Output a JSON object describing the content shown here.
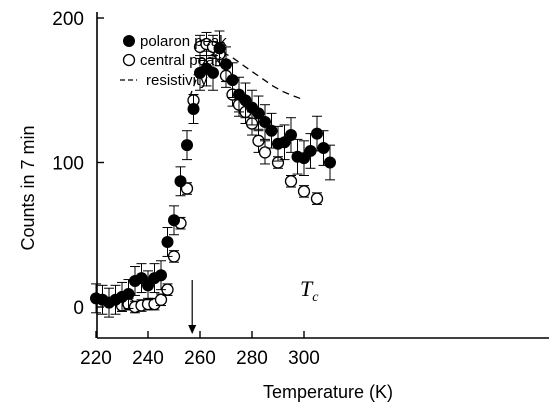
{
  "chart_data": {
    "type": "scatter",
    "xlabel": "Temperature (K)",
    "ylabel": "Counts in 7 min",
    "xlim": [
      219,
      310
    ],
    "ylim": [
      -15,
      205
    ],
    "xticks": [
      220,
      240,
      260,
      280,
      300
    ],
    "yticks": [
      0,
      100,
      200
    ],
    "grid": false,
    "legend_position": "top-left",
    "series": [
      {
        "name": "polaron peak",
        "marker": "filled-circle",
        "color": "#000000",
        "x": [
          220,
          222.5,
          225,
          227.5,
          230,
          232.5,
          235,
          237.5,
          240,
          242.5,
          245,
          247.5,
          250,
          252.5,
          255,
          257.5,
          260,
          262.5,
          265,
          267.5,
          270,
          272.5,
          275,
          277.5,
          280,
          282.5,
          285,
          287.5,
          290,
          292.5,
          295,
          297.5,
          300,
          302.5,
          305,
          307.5,
          310
        ],
        "y": [
          6,
          5,
          3,
          5,
          7,
          9,
          18,
          20,
          15,
          20,
          22,
          45,
          60,
          87,
          112,
          137,
          162,
          165,
          162,
          179,
          168,
          157,
          147,
          143,
          138,
          134,
          128,
          122,
          113,
          114,
          119,
          104,
          103,
          108,
          120,
          110,
          100
        ],
        "yerr": [
          10,
          10,
          10,
          10,
          10,
          10,
          10,
          10,
          10,
          10,
          10,
          10,
          10,
          10,
          10,
          10,
          12,
          12,
          12,
          12,
          12,
          12,
          12,
          12,
          12,
          12,
          12,
          12,
          12,
          12,
          12,
          12,
          12,
          12,
          12,
          12,
          12
        ]
      },
      {
        "name": "central peak",
        "marker": "open-circle",
        "color": "#000000",
        "x": [
          230,
          232.5,
          235,
          237.5,
          240,
          242.5,
          245,
          247.5,
          250,
          252.5,
          255,
          257.5,
          260,
          262.5,
          265,
          267.5,
          270,
          272.5,
          275,
          277.5,
          280,
          282.5,
          285,
          290,
          295,
          300,
          305
        ],
        "y": [
          1,
          2,
          0,
          1,
          2,
          2,
          5,
          12,
          35,
          58,
          82,
          143,
          180,
          182,
          180,
          175,
          160,
          147,
          140,
          135,
          127,
          115,
          107,
          100,
          87,
          80,
          75
        ],
        "yerr": [
          4,
          4,
          4,
          4,
          4,
          4,
          4,
          4,
          4,
          4,
          4,
          4,
          8,
          8,
          8,
          8,
          8,
          8,
          8,
          8,
          8,
          8,
          8,
          4,
          4,
          4,
          4
        ]
      },
      {
        "name": "resistivity",
        "line_style": "dashed",
        "color": "#000000",
        "x": [
          256,
          260,
          263,
          266,
          268,
          270,
          273,
          276,
          280,
          284,
          288,
          292,
          296,
          299
        ],
        "y": [
          145,
          165,
          173,
          176,
          176,
          175,
          172,
          168,
          163,
          158,
          153,
          149,
          146,
          144
        ]
      }
    ],
    "annotations": [
      {
        "text": "T",
        "subscript": "c",
        "arrow_x": 257,
        "arrow_y_from": -4,
        "arrow_y_to": -45
      }
    ]
  }
}
